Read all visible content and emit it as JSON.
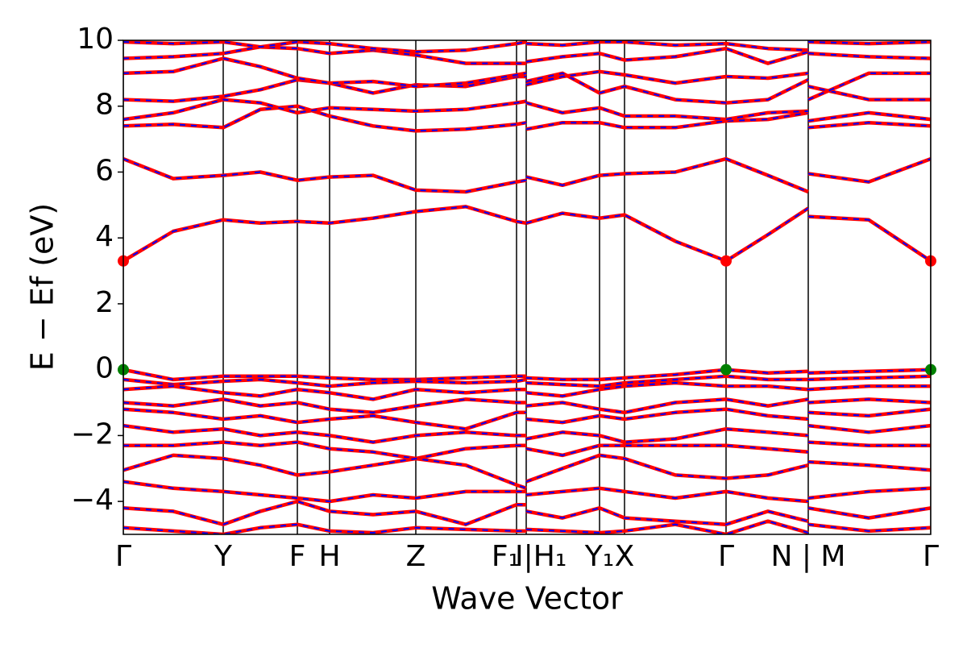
{
  "chart_data": {
    "type": "band",
    "x_label": "Wave Vector",
    "y_label": "E − Ef (eV)",
    "ylim": [
      -5,
      10
    ],
    "yticks": [
      {
        "value": -4,
        "label": "−4"
      },
      {
        "value": -2,
        "label": "−2"
      },
      0,
      2,
      4,
      6,
      8,
      10
    ],
    "xlim": [
      0,
      10.02
    ],
    "xticks": [
      {
        "value": 0,
        "label": "Γ"
      },
      {
        "value": 1.24,
        "label": "Y"
      },
      {
        "value": 2.16,
        "label": "F"
      },
      {
        "value": 2.56,
        "label": "H"
      },
      {
        "value": 3.63,
        "label": "Z"
      },
      {
        "value": 4.88,
        "label": "F₁"
      },
      {
        "value": 5.0,
        "label": "I|H₁"
      },
      {
        "value": 5.91,
        "label": "Y₁"
      },
      {
        "value": 6.22,
        "label": "X"
      },
      {
        "value": 7.48,
        "label": "Γ"
      },
      {
        "value": 8.5,
        "label": "N | M"
      },
      {
        "value": 10.02,
        "label": "Γ"
      }
    ],
    "color": "#ff0000",
    "dash_color": "#0000ff",
    "x": [
      0,
      0.62,
      1.24,
      1.7,
      2.16,
      2.56,
      3.1,
      3.63,
      4.25,
      4.88,
      5.0,
      5.0,
      5.0,
      5.45,
      5.91,
      6.22,
      6.85,
      7.48,
      8.0,
      8.5,
      8.5,
      8.5,
      9.25,
      10.02
    ],
    "bands": [
      {
        "values": [
          3.3,
          4.2,
          4.55,
          4.45,
          4.5,
          4.45,
          4.6,
          4.8,
          4.95,
          4.5,
          4.45,
          null,
          4.45,
          4.75,
          4.6,
          4.7,
          3.9,
          3.3,
          4.1,
          4.9,
          null,
          4.65,
          4.55,
          3.3
        ]
      },
      {
        "values": [
          6.4,
          5.8,
          5.9,
          6.0,
          5.75,
          5.85,
          5.9,
          5.45,
          5.4,
          5.7,
          5.75,
          null,
          5.85,
          5.6,
          5.9,
          5.95,
          6.0,
          6.4,
          5.9,
          5.4,
          null,
          5.95,
          5.7,
          6.4
        ]
      },
      {
        "values": [
          7.4,
          7.45,
          7.35,
          7.9,
          8.0,
          7.7,
          7.4,
          7.25,
          7.3,
          7.45,
          7.5,
          null,
          7.3,
          7.5,
          7.5,
          7.35,
          7.35,
          7.55,
          7.6,
          7.8,
          null,
          7.35,
          7.5,
          7.4
        ]
      },
      {
        "values": [
          7.6,
          7.8,
          8.2,
          8.1,
          7.8,
          7.95,
          7.9,
          7.85,
          7.9,
          8.1,
          8.15,
          null,
          8.1,
          7.8,
          7.95,
          7.7,
          7.7,
          7.6,
          7.8,
          7.85,
          null,
          7.55,
          7.8,
          7.6
        ]
      },
      {
        "values": [
          8.2,
          8.15,
          8.3,
          8.5,
          8.8,
          8.7,
          8.4,
          8.65,
          8.6,
          8.9,
          8.9,
          null,
          8.75,
          9.0,
          8.4,
          8.6,
          8.2,
          8.1,
          8.2,
          8.8,
          null,
          8.6,
          8.2,
          8.2
        ]
      },
      {
        "values": [
          9.0,
          9.05,
          9.45,
          9.2,
          8.85,
          8.7,
          8.75,
          8.6,
          8.7,
          8.95,
          9.0,
          null,
          8.65,
          8.9,
          9.05,
          8.95,
          8.7,
          8.9,
          8.85,
          9.0,
          null,
          8.2,
          9.0,
          9.0
        ]
      },
      {
        "values": [
          9.45,
          9.5,
          9.6,
          9.8,
          9.75,
          9.6,
          9.7,
          9.55,
          9.3,
          9.3,
          9.3,
          null,
          9.35,
          9.5,
          9.6,
          9.4,
          9.5,
          9.75,
          9.3,
          9.65,
          null,
          9.6,
          9.5,
          9.45
        ]
      },
      {
        "values": [
          9.95,
          9.9,
          9.95,
          9.8,
          9.95,
          9.9,
          9.75,
          9.65,
          9.7,
          9.9,
          9.95,
          null,
          9.9,
          9.85,
          9.95,
          9.95,
          9.85,
          9.9,
          9.75,
          9.7,
          null,
          9.95,
          9.9,
          9.95
        ]
      },
      {
        "values": [
          0,
          -0.3,
          -0.2,
          -0.2,
          -0.2,
          -0.25,
          -0.3,
          -0.3,
          -0.25,
          -0.2,
          -0.2,
          null,
          -0.25,
          -0.3,
          -0.3,
          -0.25,
          -0.15,
          0,
          -0.1,
          -0.05,
          null,
          -0.1,
          -0.05,
          0
        ]
      },
      {
        "values": [
          -0.3,
          -0.45,
          -0.35,
          -0.3,
          -0.4,
          -0.5,
          -0.4,
          -0.35,
          -0.4,
          -0.35,
          -0.3,
          null,
          -0.4,
          -0.45,
          -0.5,
          -0.4,
          -0.3,
          -0.2,
          -0.3,
          -0.3,
          null,
          -0.3,
          -0.25,
          -0.2
        ]
      },
      {
        "values": [
          -0.6,
          -0.5,
          -0.7,
          -0.8,
          -0.6,
          -0.7,
          -0.9,
          -0.6,
          -0.7,
          -0.6,
          -0.6,
          null,
          -0.7,
          -0.8,
          -0.6,
          -0.5,
          -0.4,
          -0.5,
          -0.5,
          -0.6,
          null,
          -0.6,
          -0.5,
          -0.5
        ]
      },
      {
        "values": [
          -1.0,
          -1.1,
          -0.9,
          -1.1,
          -1.0,
          -1.2,
          -1.3,
          -1.1,
          -0.9,
          -1.0,
          -1.0,
          null,
          -1.1,
          -1.0,
          -1.2,
          -1.3,
          -1.0,
          -0.9,
          -1.1,
          -0.9,
          null,
          -1.0,
          -0.9,
          -1.0
        ]
      },
      {
        "values": [
          -1.2,
          -1.3,
          -1.5,
          -1.4,
          -1.6,
          -1.5,
          -1.4,
          -1.6,
          -1.8,
          -1.3,
          -1.3,
          null,
          -1.5,
          -1.6,
          -1.4,
          -1.5,
          -1.3,
          -1.2,
          -1.4,
          -1.5,
          null,
          -1.3,
          -1.4,
          -1.2
        ]
      },
      {
        "values": [
          -1.7,
          -1.9,
          -1.8,
          -2.0,
          -1.9,
          -2.0,
          -2.2,
          -2.0,
          -1.9,
          -2.0,
          -2.0,
          null,
          -2.1,
          -1.9,
          -2.0,
          -2.2,
          -2.1,
          -1.8,
          -1.9,
          -2.0,
          null,
          -1.7,
          -1.9,
          -1.7
        ]
      },
      {
        "values": [
          -2.3,
          -2.3,
          -2.2,
          -2.3,
          -2.2,
          -2.4,
          -2.5,
          -2.7,
          -2.4,
          -2.3,
          -2.3,
          null,
          -2.4,
          -2.6,
          -2.3,
          -2.3,
          -2.3,
          -2.3,
          -2.4,
          -2.5,
          null,
          -2.2,
          -2.3,
          -2.3
        ]
      },
      {
        "values": [
          -3.05,
          -2.6,
          -2.7,
          -2.9,
          -3.2,
          -3.1,
          -2.9,
          -2.7,
          -2.9,
          -3.5,
          -3.6,
          null,
          -3.4,
          -3.0,
          -2.6,
          -2.7,
          -3.2,
          -3.3,
          -3.2,
          -2.9,
          null,
          -2.8,
          -2.9,
          -3.05
        ]
      },
      {
        "values": [
          -3.4,
          -3.6,
          -3.7,
          -3.8,
          -3.9,
          -4.0,
          -3.8,
          -3.9,
          -3.7,
          -3.7,
          -3.7,
          null,
          -3.8,
          -3.7,
          -3.6,
          -3.7,
          -3.9,
          -3.7,
          -3.9,
          -4.0,
          null,
          -3.9,
          -3.7,
          -3.6
        ]
      },
      {
        "values": [
          -4.2,
          -4.3,
          -4.7,
          -4.3,
          -4.0,
          -4.3,
          -4.4,
          -4.3,
          -4.7,
          -4.1,
          -4.1,
          null,
          -4.3,
          -4.5,
          -4.2,
          -4.5,
          -4.6,
          -4.7,
          -4.3,
          -4.6,
          null,
          -4.2,
          -4.5,
          -4.2
        ]
      },
      {
        "values": [
          -4.8,
          -4.9,
          -5.0,
          -4.8,
          -4.7,
          -4.9,
          -4.95,
          -4.8,
          -4.85,
          -4.9,
          -4.9,
          null,
          -4.85,
          -4.9,
          -4.95,
          -4.9,
          -4.7,
          -5.0,
          -4.6,
          -4.95,
          null,
          -4.7,
          -4.9,
          -4.8
        ]
      }
    ],
    "markers": [
      {
        "x": [
          0,
          7.48,
          10.02
        ],
        "values": [
          3.3,
          3.3,
          3.3
        ],
        "color": "#ff0000"
      },
      {
        "x": [
          0,
          7.48,
          10.02
        ],
        "values": [
          0,
          0,
          0
        ],
        "color": "#008000"
      }
    ]
  }
}
